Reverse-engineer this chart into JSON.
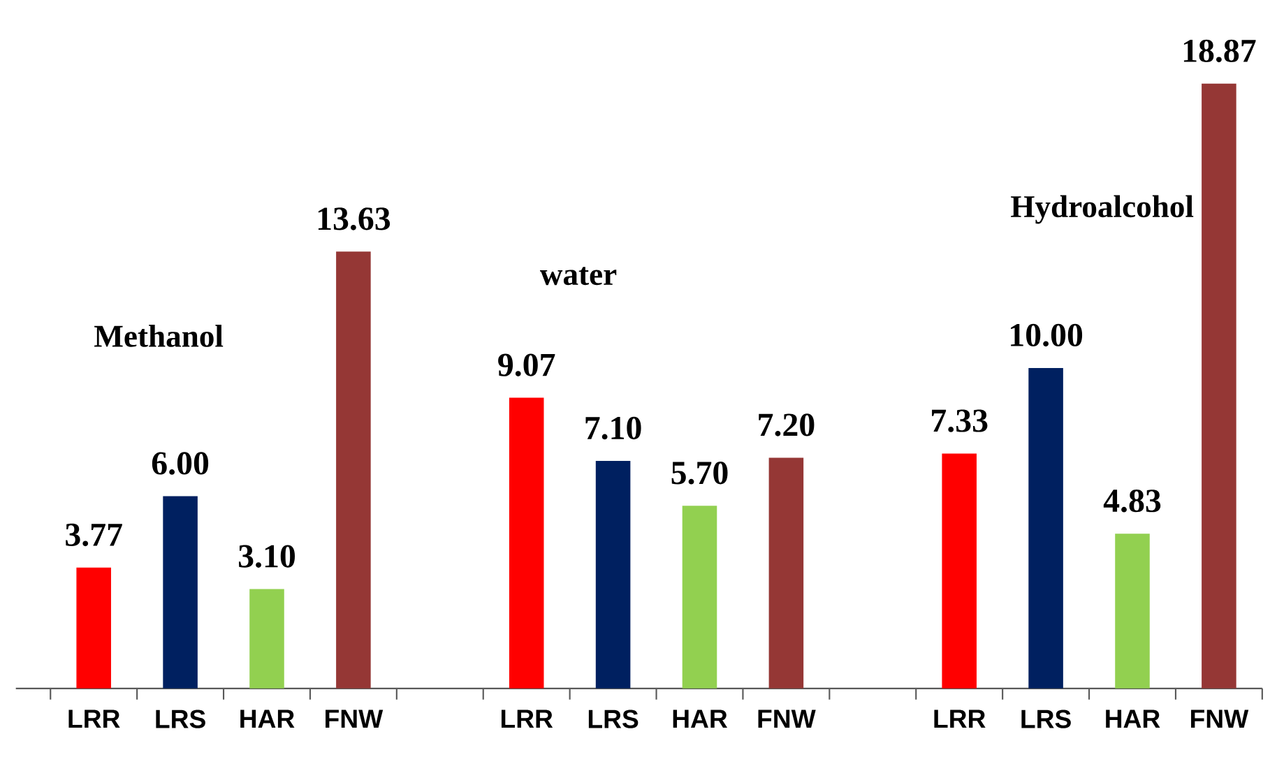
{
  "chart_data": {
    "type": "bar",
    "categories": [
      "LRR",
      "LRS",
      "HAR",
      "FNW",
      null,
      "LRR",
      "LRS",
      "HAR",
      "FNW",
      null,
      "LRR",
      "LRS",
      "HAR",
      "FNW"
    ],
    "values": [
      3.77,
      6.0,
      3.1,
      13.63,
      null,
      9.07,
      7.1,
      5.7,
      7.2,
      null,
      7.33,
      10.0,
      4.83,
      18.87
    ],
    "colors": [
      "#ff0000",
      "#002060",
      "#92d050",
      "#953735",
      "#ffffff",
      "#ff0000",
      "#002060",
      "#92d050",
      "#953735",
      "#ffffff",
      "#ff0000",
      "#002060",
      "#92d050",
      "#953735"
    ],
    "value_labels": [
      "3.77",
      "6.00",
      "3.10",
      "13.63",
      null,
      "9.07",
      "7.10",
      "5.70",
      "7.20",
      null,
      "7.33",
      "10.00",
      "4.83",
      "18.87"
    ],
    "annotations": [
      "Methanol",
      "water",
      "Hydroalcohol"
    ],
    "tick_labels": "x",
    "grid": false
  }
}
